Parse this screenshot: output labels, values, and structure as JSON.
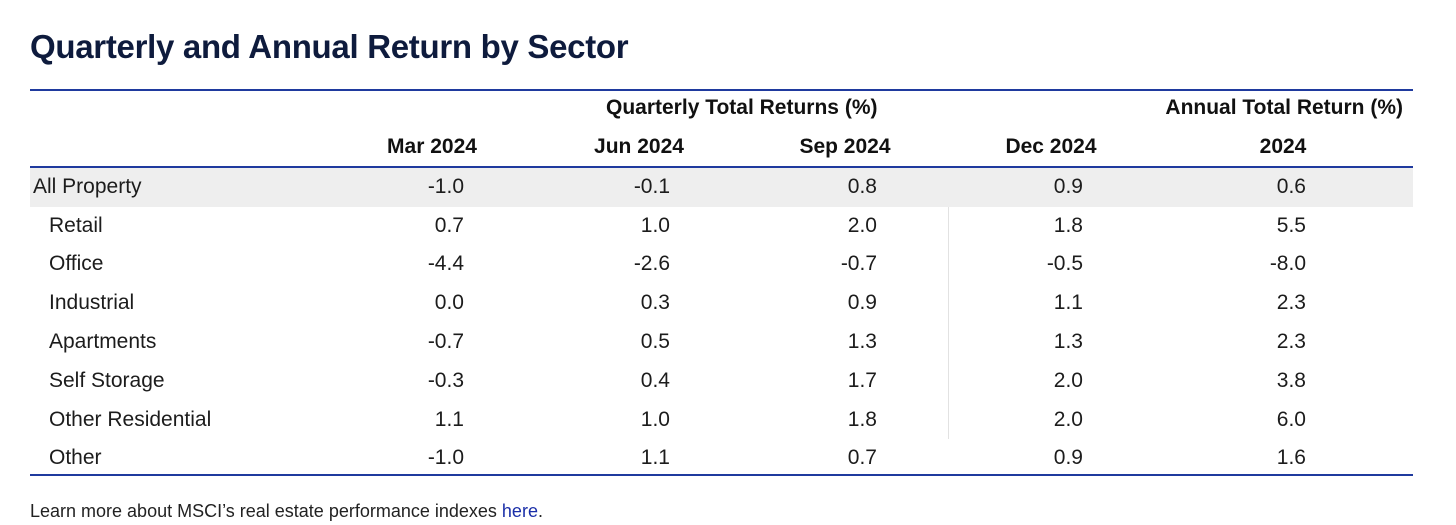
{
  "title": "Quarterly and Annual Return by Sector",
  "table": {
    "group_headers": {
      "quarterly": "Quarterly Total Returns (%)",
      "annual": "Annual Total Return (%)"
    },
    "columns": [
      "Mar 2024",
      "Jun 2024",
      "Sep 2024",
      "Dec 2024",
      "2024"
    ],
    "rows": [
      {
        "label": "All Property",
        "values": [
          "-1.0",
          "-0.1",
          "0.8",
          "0.9",
          "0.6"
        ]
      },
      {
        "label": "Retail",
        "values": [
          "0.7",
          "1.0",
          "2.0",
          "1.8",
          "5.5"
        ]
      },
      {
        "label": "Office",
        "values": [
          "-4.4",
          "-2.6",
          "-0.7",
          "-0.5",
          "-8.0"
        ]
      },
      {
        "label": "Industrial",
        "values": [
          "0.0",
          "0.3",
          "0.9",
          "1.1",
          "2.3"
        ]
      },
      {
        "label": "Apartments",
        "values": [
          "-0.7",
          "0.5",
          "1.3",
          "1.3",
          "2.3"
        ]
      },
      {
        "label": "Self Storage",
        "values": [
          "-0.3",
          "0.4",
          "1.7",
          "2.0",
          "3.8"
        ]
      },
      {
        "label": "Other Residential",
        "values": [
          "1.1",
          "1.0",
          "1.8",
          "2.0",
          "6.0"
        ]
      },
      {
        "label": "Other",
        "values": [
          "-1.0",
          "1.1",
          "0.7",
          "0.9",
          "1.6"
        ]
      }
    ]
  },
  "footnote": {
    "text": "Learn more about MSCI’s real estate performance indexes ",
    "link_label": "here",
    "end": "."
  },
  "colors": {
    "title": "#0e1b3d",
    "rule": "#1f3a9e",
    "highlight_row": "#eeeeee",
    "link": "#1a2ea8"
  }
}
